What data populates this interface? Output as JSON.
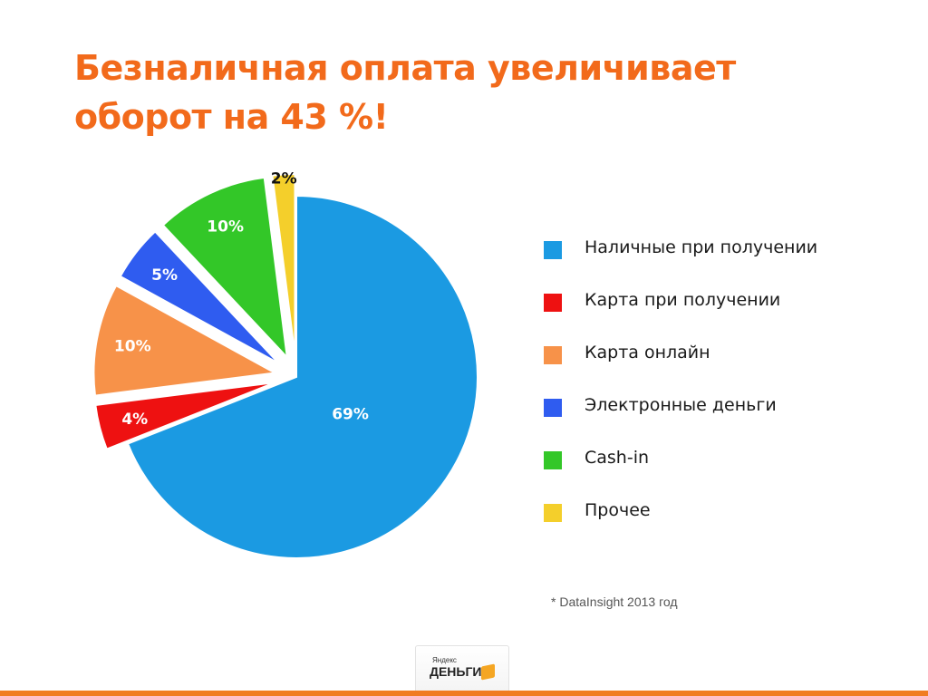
{
  "title": {
    "line1": "Безналичная оплата увеличивает",
    "line2": "оборот на 43 %!"
  },
  "colors": {
    "title": "#f26a1b",
    "bottom_bar": "#f07c22"
  },
  "chart_data": {
    "type": "pie",
    "categories": [
      "Наличные при получении",
      "Карта при получении",
      "Карта онлайн",
      "Электронные деньги",
      "Cash-in",
      "Прочее"
    ],
    "values": [
      69,
      4,
      10,
      5,
      10,
      2
    ],
    "data_labels": [
      "69%",
      "4%",
      "10%",
      "5%",
      "10%",
      "2%"
    ],
    "colors": [
      "#1b9ae2",
      "#ee1111",
      "#f79249",
      "#2f5cf0",
      "#33c728",
      "#f4cf2b"
    ],
    "exploded": [
      false,
      true,
      true,
      true,
      true,
      true
    ],
    "legend_position": "right"
  },
  "legend": {
    "items": [
      {
        "label": "Наличные при получении",
        "color": "#1b9ae2"
      },
      {
        "label": "Карта при получении",
        "color": "#ee1111"
      },
      {
        "label": "Карта онлайн",
        "color": "#f79249"
      },
      {
        "label": "Электронные деньги",
        "color": "#2f5cf0"
      },
      {
        "label": "Cash-in",
        "color": "#33c728"
      },
      {
        "label": "Прочее",
        "color": "#f4cf2b"
      }
    ]
  },
  "source": "* DataInsight 2013 год",
  "logo": {
    "small_text": "Яндекс",
    "big_text": "ДЕНЬГИ"
  }
}
